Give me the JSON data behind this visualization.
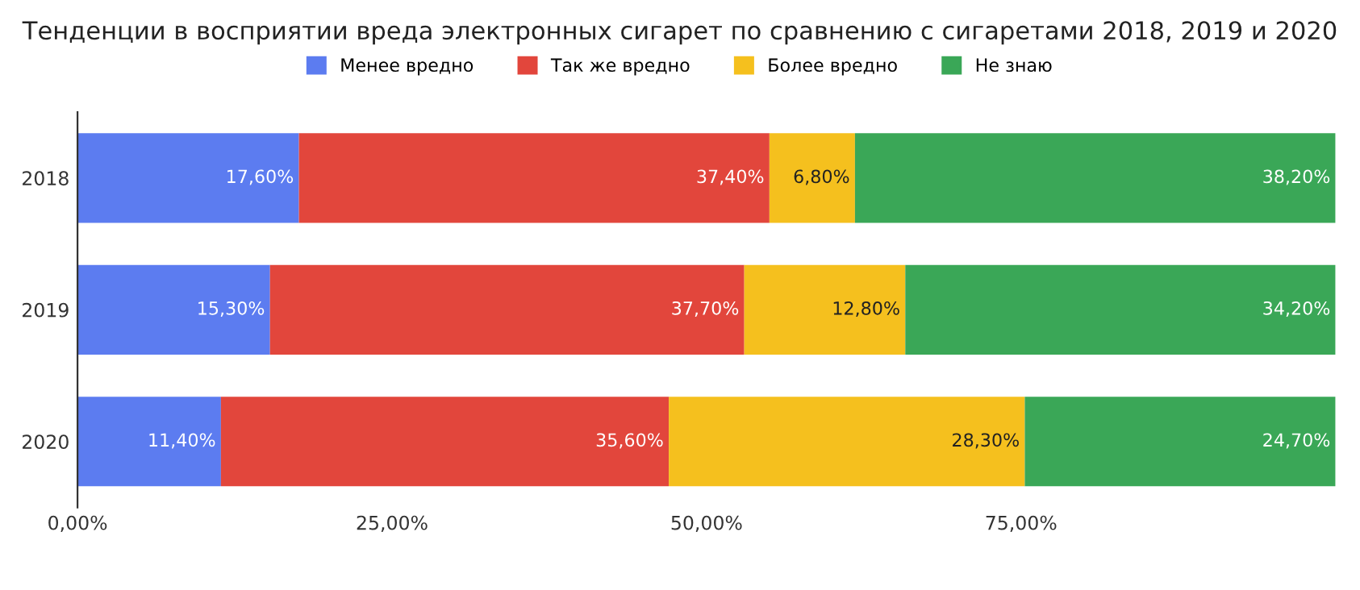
{
  "chart_data": {
    "type": "bar",
    "orientation": "horizontal",
    "stacked": true,
    "title": "Тенденции в восприятии вреда электронных сигарет по сравнению с сигаретами 2018, 2019 и 2020",
    "categories": [
      "2018",
      "2019",
      "2020"
    ],
    "series": [
      {
        "name": "Менее вредно",
        "color": "#5c7cf0",
        "values": [
          17.6,
          15.3,
          11.4
        ],
        "value_labels": [
          "17,60%",
          "15,30%",
          "11,40%"
        ]
      },
      {
        "name": "Так же вредно",
        "color": "#e2463c",
        "values": [
          37.4,
          37.7,
          35.6
        ],
        "value_labels": [
          "37,40%",
          "37,70%",
          "35,60%"
        ]
      },
      {
        "name": "Более вредно",
        "color": "#f5c01e",
        "values": [
          6.8,
          12.8,
          28.3
        ],
        "value_labels": [
          "6,80%",
          "12,80%",
          "28,30%"
        ]
      },
      {
        "name": "Не знаю",
        "color": "#3aa757",
        "values": [
          38.2,
          34.2,
          24.7
        ],
        "value_labels": [
          "38,20%",
          "34,20%",
          "24,70%"
        ]
      }
    ],
    "xlim": [
      0,
      100
    ],
    "xticks": [
      {
        "value": 0,
        "label": "0,00%"
      },
      {
        "value": 25,
        "label": "25,00%"
      },
      {
        "value": 50,
        "label": "50,00%"
      },
      {
        "value": 75,
        "label": "75,00%"
      }
    ],
    "legend": "top",
    "grid": false
  }
}
